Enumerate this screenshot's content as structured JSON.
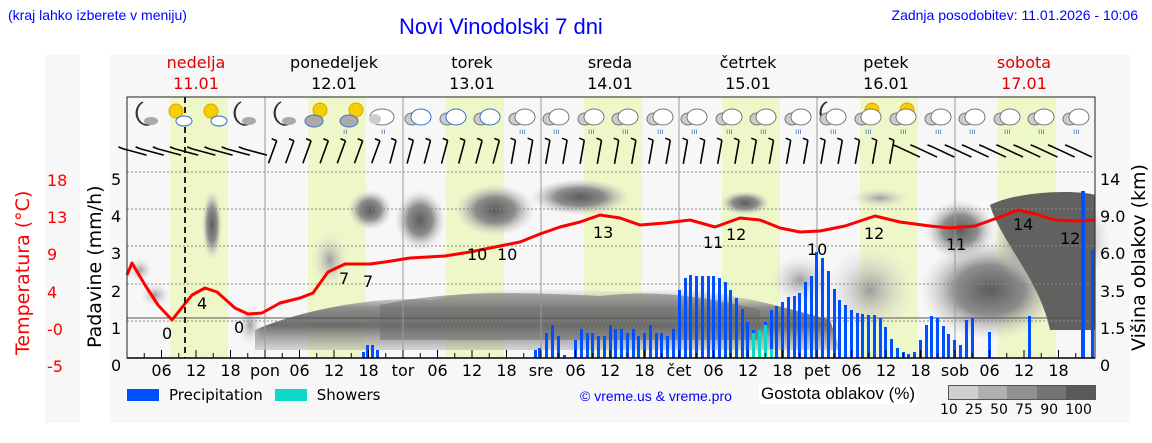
{
  "header": {
    "hint": "(kraj lahko izberete v meniju)",
    "title": "Novi Vinodolski 7 dni",
    "updated": "Zadnja posodobitev: 11.01.2026 - 10:06"
  },
  "days": [
    {
      "name": "nedelja",
      "date": "11.01",
      "weekend": true
    },
    {
      "name": "ponedeljek",
      "date": "12.01",
      "weekend": false
    },
    {
      "name": "torek",
      "date": "13.01",
      "weekend": false
    },
    {
      "name": "sreda",
      "date": "14.01",
      "weekend": false
    },
    {
      "name": "četrtek",
      "date": "15.01",
      "weekend": false
    },
    {
      "name": "petek",
      "date": "16.01",
      "weekend": false
    },
    {
      "name": "sobota",
      "date": "17.01",
      "weekend": true
    }
  ],
  "axes": {
    "left_temp_label": "Temperatura (°C)",
    "left_precip_label": "Padavine (mm/h)",
    "right_label": "Višina oblakov (km)",
    "temp_ticks": [
      "18",
      "13",
      "9",
      "4",
      "-0",
      "-5"
    ],
    "precip_ticks": [
      "5",
      "4",
      "3",
      "2",
      "1",
      "0"
    ],
    "cloud_ticks": [
      "14",
      "9.0",
      "6.0",
      "3.5",
      "1.5",
      "0"
    ],
    "x_ticks": [
      "06",
      "12",
      "18",
      "pon",
      "06",
      "12",
      "18",
      "tor",
      "06",
      "12",
      "18",
      "sre",
      "06",
      "12",
      "18",
      "čet",
      "06",
      "12",
      "18",
      "pet",
      "06",
      "12",
      "18",
      "sob",
      "06",
      "12",
      "18"
    ]
  },
  "legend": {
    "precipitation": "Precipitation",
    "showers": "Showers",
    "copyright": "© vreme.us & vreme.pro",
    "cloud_density": "Gostota oblakov (%)",
    "cloud_scale": [
      "10",
      "25",
      "50",
      "75",
      "90",
      "100"
    ]
  },
  "colors": {
    "temperature": "#ff0000",
    "precipitation": "#0050ff",
    "showers": "#10d8c8",
    "weekend": "#e00000",
    "title": "#0000ff",
    "daylight": "#eef7c8"
  },
  "chart_data": {
    "type": "line",
    "title": "Novi Vinodolski 7 dni",
    "xlabel": "",
    "ylabel": "Padavine (mm/h)",
    "ylim": [
      0,
      5
    ],
    "grid": true,
    "series": [
      {
        "name": "Temperatura (°C)",
        "type": "line",
        "labels": [
          {
            "x": "11.01 04:00",
            "value": 0
          },
          {
            "x": "11.01 14:00",
            "value": 4
          },
          {
            "x": "11.01 23:00",
            "value": 0
          },
          {
            "x": "12.01 14:00",
            "value": 7
          },
          {
            "x": "12.01 18:00",
            "value": 7
          },
          {
            "x": "13.01 13:00",
            "value": 10
          },
          {
            "x": "13.01 17:00",
            "value": 10
          },
          {
            "x": "14.01 13:00",
            "value": 13
          },
          {
            "x": "15.01 07:00",
            "value": 11
          },
          {
            "x": "15.01 12:00",
            "value": 12
          },
          {
            "x": "16.01 00:00",
            "value": 10
          },
          {
            "x": "16.01 12:00",
            "value": 12
          },
          {
            "x": "17.01 00:00",
            "value": 11
          },
          {
            "x": "17.01 12:00",
            "value": 14
          },
          {
            "x": "17.01 21:00",
            "value": 12
          }
        ]
      },
      {
        "name": "Precipitation",
        "type": "bar",
        "values_mm_h_approx": {
          "12.01 18:00": 0.4,
          "14.01 00-12": 0.6,
          "14.01 12-24": 0.8,
          "15.01 00-06": 2.2,
          "15.01 06-12": 1.5,
          "16.01 00:00": 2.8,
          "16.01 06-12": 1.2,
          "16.01 12-18": 0.2,
          "16.01 18-24": 1.0,
          "17.01 12:00": 1.1,
          "17.01 22:00": 4.5
        }
      },
      {
        "name": "Showers",
        "type": "bar",
        "values_mm_h_approx": {
          "15.01 14-17": 0.5
        }
      }
    ],
    "right_axis": {
      "label": "Višina oblakov (km)",
      "ticks": [
        0,
        1.5,
        3.5,
        6.0,
        9.0,
        14
      ]
    },
    "left_temp_axis": {
      "label": "Temperatura (°C)",
      "ticks": [
        -5,
        0,
        4,
        9,
        13,
        18
      ]
    }
  }
}
